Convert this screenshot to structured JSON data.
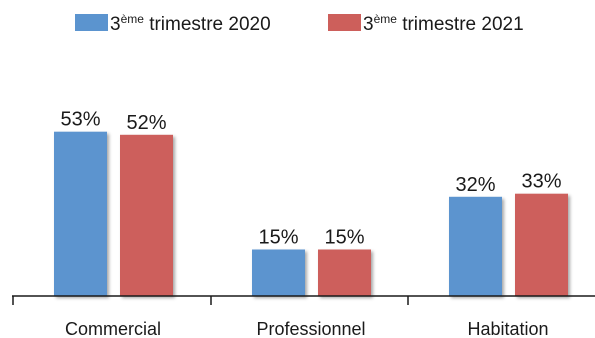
{
  "chart_data": {
    "type": "bar",
    "categories": [
      "Commercial",
      "Professionnel",
      "Habitation"
    ],
    "series": [
      {
        "name": "3ème trimestre 2020",
        "name_parts": {
          "prefix": "3",
          "superscript": "ème",
          "suffix": " trimestre 2020"
        },
        "color": "#5b94cf",
        "values": [
          53,
          15,
          32
        ],
        "labels": [
          "53%",
          "15%",
          "32%"
        ]
      },
      {
        "name": "3ème trimestre 2021",
        "name_parts": {
          "prefix": "3",
          "superscript": "ème",
          "suffix": " trimestre 2021"
        },
        "color": "#cd5f5b",
        "values": [
          52,
          15,
          33
        ],
        "labels": [
          "52%",
          "15%",
          "33%"
        ]
      }
    ],
    "ylim": [
      0,
      60
    ],
    "grid": false,
    "legend_position": "top-center",
    "title": "",
    "xlabel": "",
    "ylabel": ""
  }
}
